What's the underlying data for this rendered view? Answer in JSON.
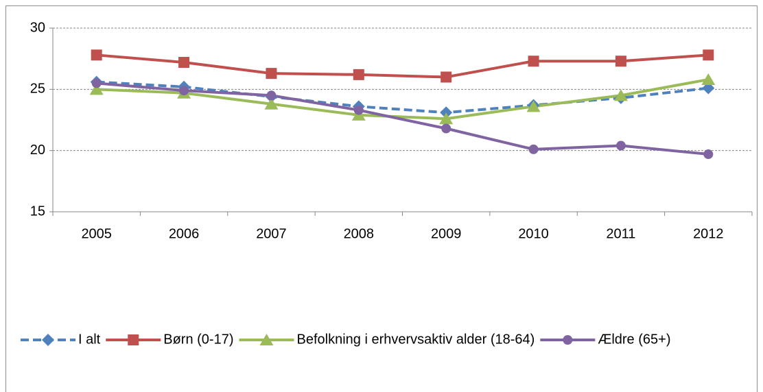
{
  "chart_data": {
    "type": "line",
    "categories": [
      "2005",
      "2006",
      "2007",
      "2008",
      "2009",
      "2010",
      "2011",
      "2012"
    ],
    "series": [
      {
        "name": "I alt",
        "color": "#4f81bd",
        "linestyle": "dashed",
        "marker": "diamond",
        "values": [
          25.6,
          25.2,
          24.4,
          23.6,
          23.1,
          23.7,
          24.3,
          25.1
        ]
      },
      {
        "name": "Børn (0-17)",
        "color": "#c0504d",
        "linestyle": "solid",
        "marker": "square",
        "values": [
          27.8,
          27.2,
          26.3,
          26.2,
          26.0,
          27.3,
          27.3,
          27.8
        ]
      },
      {
        "name": "Befolkning i erhvervsaktiv alder (18-64)",
        "color": "#9bbb59",
        "linestyle": "solid",
        "marker": "triangle",
        "values": [
          25.0,
          24.7,
          23.8,
          22.9,
          22.6,
          23.6,
          24.5,
          25.8
        ]
      },
      {
        "name": "Ældre (65+)",
        "color": "#8064a2",
        "linestyle": "solid",
        "marker": "circle",
        "values": [
          25.5,
          24.9,
          24.5,
          23.3,
          21.8,
          20.1,
          20.4,
          19.7
        ]
      }
    ],
    "ylim": [
      15,
      30
    ],
    "yticks": [
      15,
      20,
      25,
      30
    ],
    "grid": true,
    "legend": "bottom"
  }
}
